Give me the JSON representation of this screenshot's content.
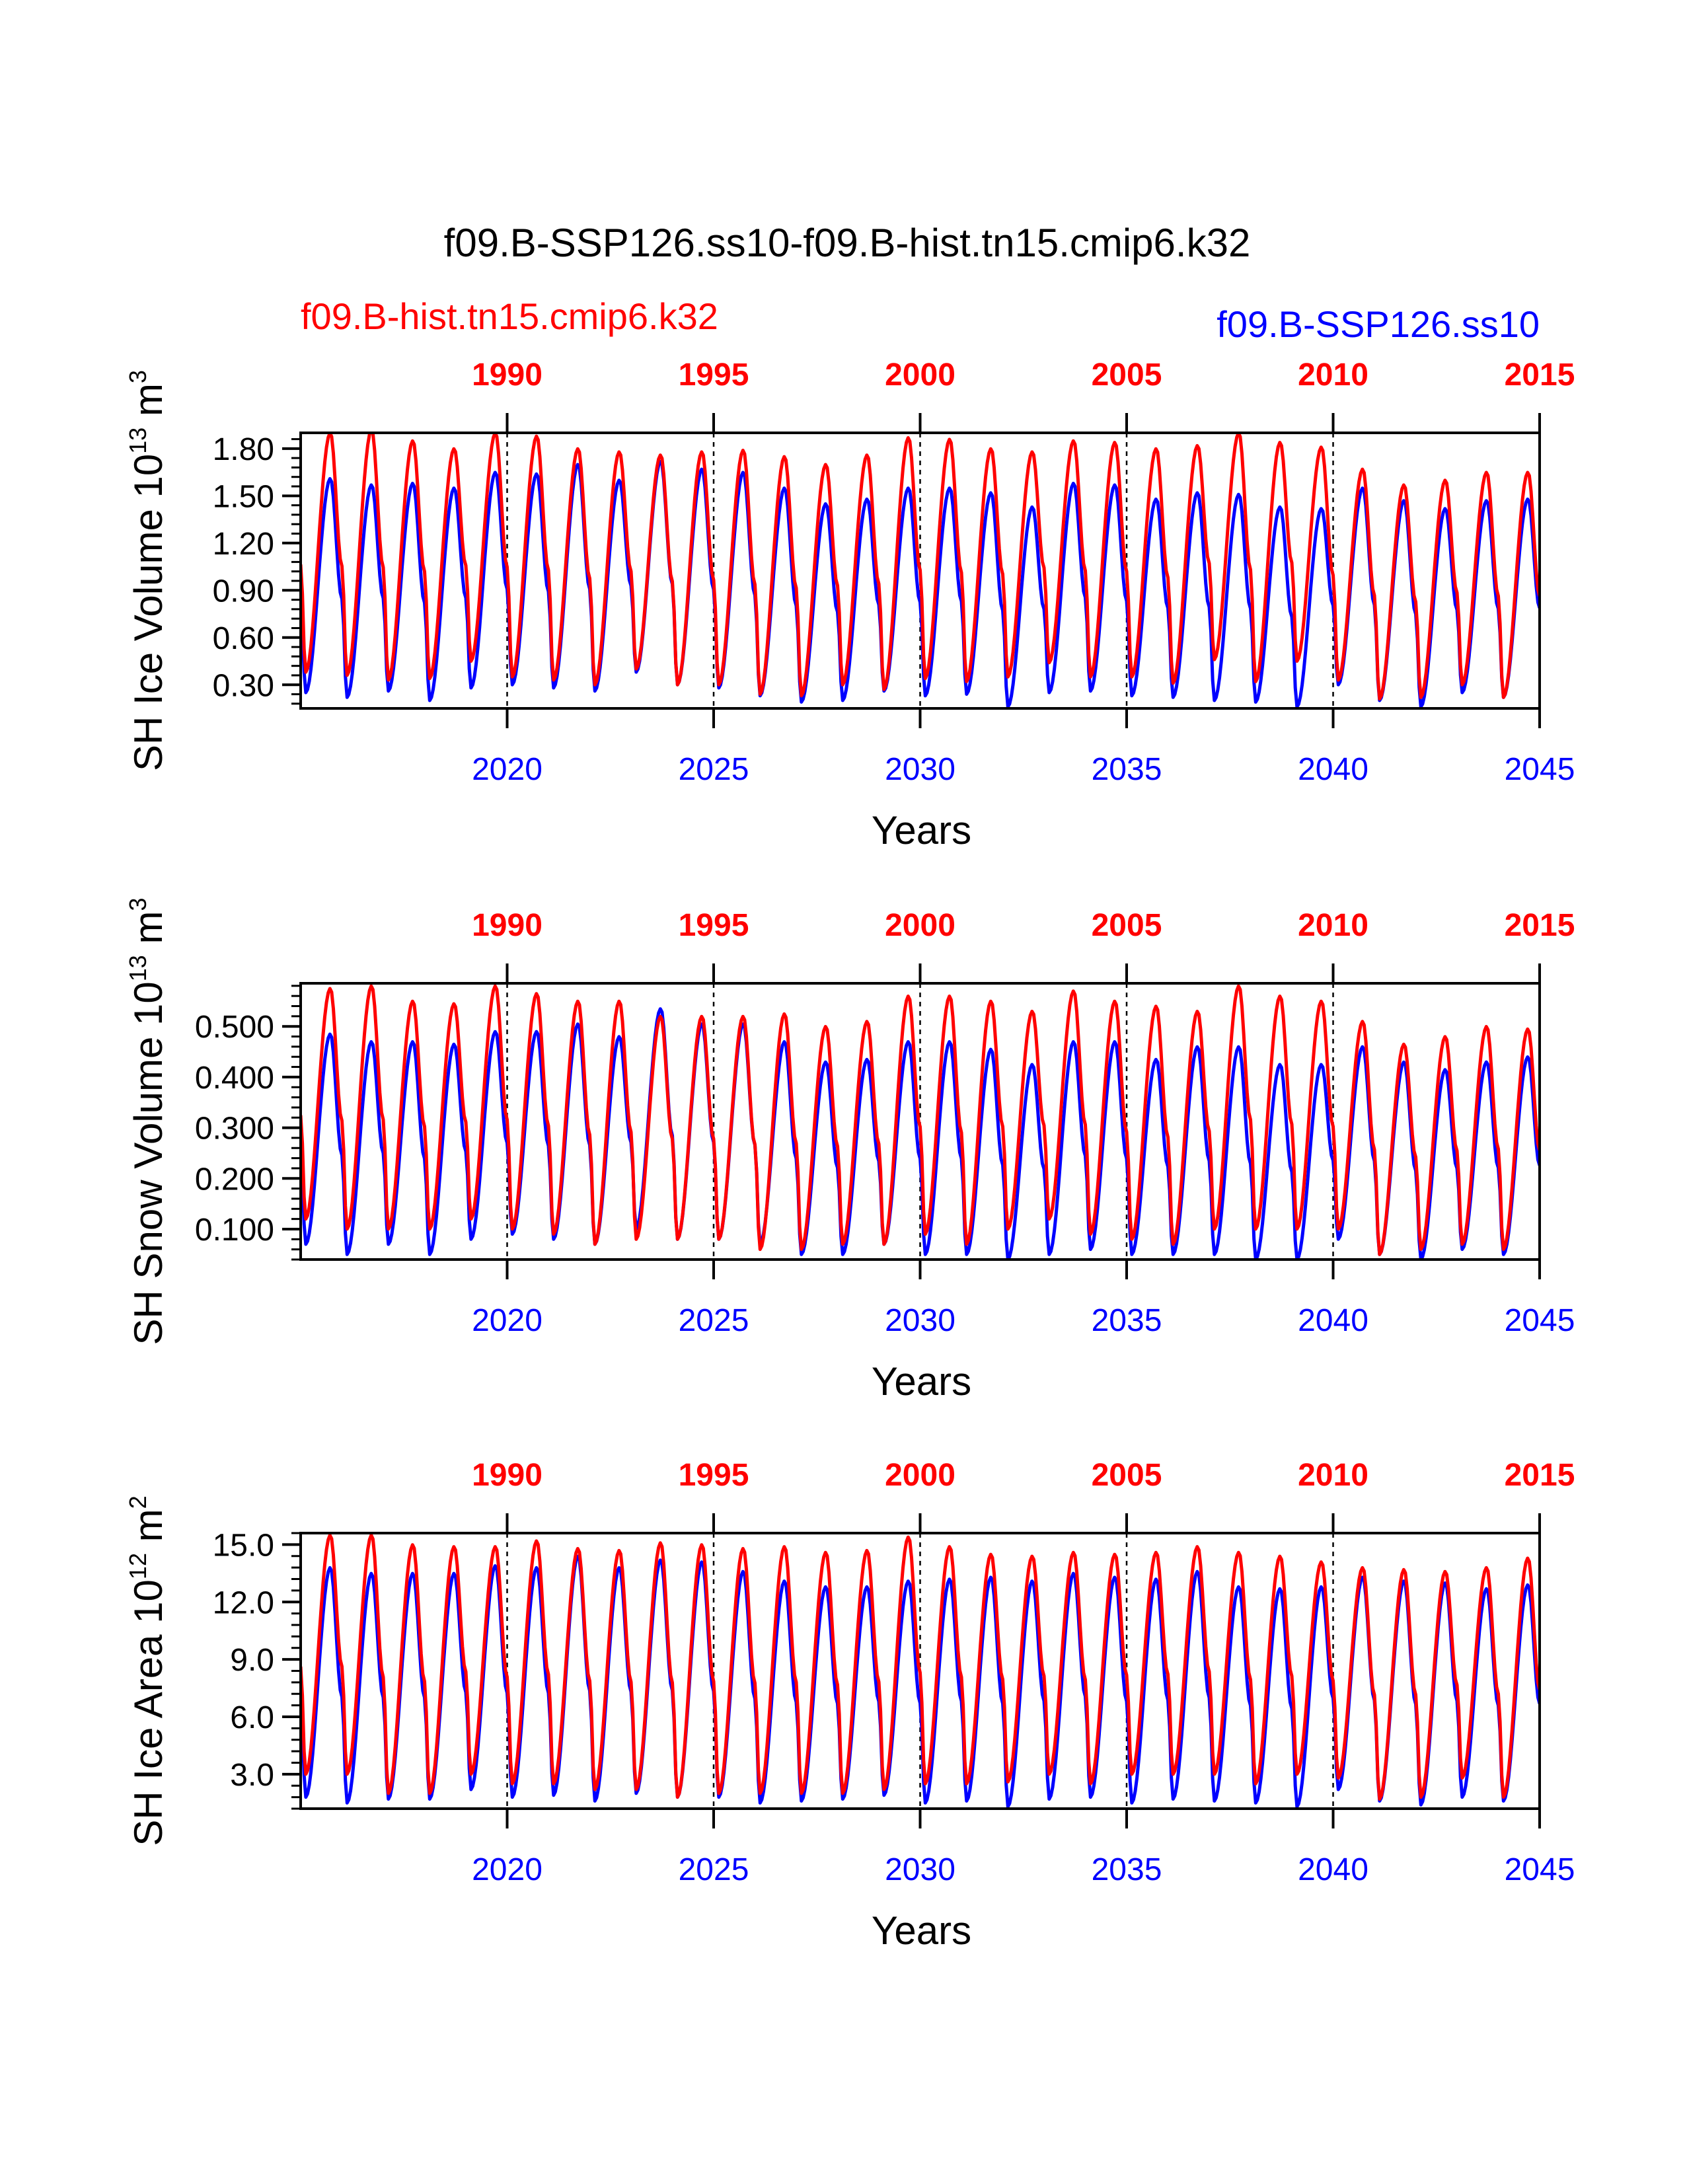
{
  "title": "f09.B-SSP126.ss10-f09.B-hist.tn15.cmip6.k32",
  "legend": {
    "hist": "f09.B-hist.tn15.cmip6.k32",
    "ssp": "f09.B-SSP126.ss10"
  },
  "colors": {
    "hist": "#ff0000",
    "ssp": "#0000ff",
    "axis": "#000000"
  },
  "top_axis_ticks": [
    "1990",
    "1995",
    "2000",
    "2005",
    "2010",
    "2015"
  ],
  "bottom_axis_ticks": [
    "2020",
    "2025",
    "2030",
    "2035",
    "2040",
    "2045"
  ],
  "chart_data": [
    {
      "type": "line",
      "ylabel_main": "SH Ice Volume 10",
      "ylabel_exp": "13",
      "ylabel_unit": " m",
      "ylabel_unit_exp": "3",
      "xlabel": "Years",
      "x_range_bottom": [
        2015,
        2045
      ],
      "x_range_top": [
        1985,
        2015
      ],
      "ylim": [
        0.15,
        1.9
      ],
      "yticks": [
        "0.30",
        "0.60",
        "0.90",
        "1.20",
        "1.50",
        "1.80"
      ],
      "ytick_values": [
        0.3,
        0.6,
        0.9,
        1.2,
        1.5,
        1.8
      ],
      "series": [
        {
          "key": "hist",
          "name": "f09.B-hist.tn15.cmip6.k32",
          "annual_max": [
            1.9,
            1.92,
            1.85,
            1.8,
            1.9,
            1.88,
            1.8,
            1.78,
            1.76,
            1.78,
            1.79,
            1.75,
            1.7,
            1.76,
            1.87,
            1.86,
            1.8,
            1.78,
            1.85,
            1.84,
            1.8,
            1.82,
            1.9,
            1.84,
            1.81,
            1.67,
            1.57,
            1.6,
            1.65,
            1.65
          ],
          "annual_min": [
            0.38,
            0.36,
            0.33,
            0.34,
            0.45,
            0.35,
            0.33,
            0.3,
            0.4,
            0.3,
            0.3,
            0.24,
            0.23,
            0.3,
            0.27,
            0.34,
            0.32,
            0.35,
            0.44,
            0.35,
            0.35,
            0.31,
            0.46,
            0.32,
            0.45,
            0.33,
            0.21,
            0.22,
            0.3,
            0.22
          ]
        },
        {
          "key": "ssp",
          "name": "f09.B-SSP126.ss10",
          "annual_max": [
            1.61,
            1.57,
            1.58,
            1.55,
            1.65,
            1.64,
            1.7,
            1.6,
            1.72,
            1.67,
            1.65,
            1.55,
            1.45,
            1.48,
            1.55,
            1.55,
            1.52,
            1.43,
            1.58,
            1.57,
            1.48,
            1.52,
            1.51,
            1.43,
            1.42,
            1.55,
            1.47,
            1.42,
            1.47,
            1.48
          ],
          "annual_min": [
            0.25,
            0.22,
            0.26,
            0.2,
            0.28,
            0.3,
            0.28,
            0.26,
            0.38,
            0.3,
            0.28,
            0.23,
            0.19,
            0.2,
            0.26,
            0.23,
            0.24,
            0.16,
            0.25,
            0.26,
            0.23,
            0.22,
            0.2,
            0.19,
            0.16,
            0.3,
            0.2,
            0.16,
            0.25,
            0.22
          ]
        }
      ]
    },
    {
      "type": "line",
      "ylabel_main": "SH Snow Volume 10",
      "ylabel_exp": "13",
      "ylabel_unit": " m",
      "ylabel_unit_exp": "3",
      "xlabel": "Years",
      "x_range_bottom": [
        2015,
        2045
      ],
      "x_range_top": [
        1985,
        2015
      ],
      "ylim": [
        0.04,
        0.585
      ],
      "yticks": [
        "0.100",
        "0.200",
        "0.300",
        "0.400",
        "0.500"
      ],
      "ytick_values": [
        0.1,
        0.2,
        0.3,
        0.4,
        0.5
      ],
      "series": [
        {
          "key": "hist",
          "name": "f09.B-hist.tn15.cmip6.k32",
          "annual_max": [
            0.575,
            0.58,
            0.55,
            0.545,
            0.58,
            0.565,
            0.55,
            0.55,
            0.52,
            0.52,
            0.52,
            0.525,
            0.5,
            0.51,
            0.56,
            0.56,
            0.55,
            0.53,
            0.57,
            0.55,
            0.54,
            0.53,
            0.58,
            0.56,
            0.55,
            0.51,
            0.465,
            0.48,
            0.5,
            0.495
          ],
          "annual_min": [
            0.12,
            0.1,
            0.1,
            0.1,
            0.12,
            0.1,
            0.09,
            0.07,
            0.08,
            0.08,
            0.08,
            0.06,
            0.06,
            0.07,
            0.07,
            0.09,
            0.07,
            0.1,
            0.12,
            0.09,
            0.08,
            0.07,
            0.1,
            0.1,
            0.1,
            0.1,
            0.05,
            0.06,
            0.07,
            0.06
          ]
        },
        {
          "key": "ssp",
          "name": "f09.B-SSP126.ss10",
          "annual_max": [
            0.485,
            0.47,
            0.47,
            0.465,
            0.49,
            0.49,
            0.505,
            0.48,
            0.535,
            0.505,
            0.505,
            0.47,
            0.43,
            0.435,
            0.47,
            0.47,
            0.455,
            0.425,
            0.47,
            0.47,
            0.435,
            0.46,
            0.46,
            0.425,
            0.425,
            0.46,
            0.43,
            0.415,
            0.43,
            0.44
          ],
          "annual_min": [
            0.07,
            0.05,
            0.07,
            0.05,
            0.08,
            0.09,
            0.08,
            0.07,
            0.1,
            0.08,
            0.08,
            0.07,
            0.05,
            0.05,
            0.07,
            0.05,
            0.05,
            0.04,
            0.05,
            0.06,
            0.05,
            0.05,
            0.05,
            0.04,
            0.04,
            0.08,
            0.05,
            0.04,
            0.06,
            0.05
          ]
        }
      ]
    },
    {
      "type": "line",
      "ylabel_main": "SH Ice Area 10",
      "ylabel_exp": "12",
      "ylabel_unit": " m",
      "ylabel_unit_exp": "2",
      "xlabel": "Years",
      "x_range_bottom": [
        2015,
        2045
      ],
      "x_range_top": [
        1985,
        2015
      ],
      "ylim": [
        1.2,
        15.6
      ],
      "yticks": [
        "3.0",
        "6.0",
        "9.0",
        "12.0",
        "15.0"
      ],
      "ytick_values": [
        3,
        6,
        9,
        12,
        15
      ],
      "series": [
        {
          "key": "hist",
          "name": "f09.B-hist.tn15.cmip6.k32",
          "annual_max": [
            15.5,
            15.5,
            15.0,
            14.9,
            14.9,
            15.2,
            14.8,
            14.7,
            15.1,
            15.0,
            14.8,
            14.9,
            14.6,
            14.7,
            15.4,
            14.9,
            14.5,
            14.4,
            14.6,
            14.5,
            14.6,
            14.9,
            14.6,
            14.4,
            14.1,
            13.8,
            13.7,
            13.6,
            13.8,
            14.3
          ],
          "annual_min": [
            3.0,
            3.0,
            2.0,
            2.0,
            3.0,
            2.5,
            2.5,
            2.2,
            2.2,
            1.8,
            2.0,
            2.0,
            2.0,
            2.0,
            2.2,
            2.5,
            2.5,
            2.6,
            3.0,
            2.5,
            3.0,
            3.0,
            3.0,
            2.5,
            3.0,
            2.8,
            1.7,
            1.8,
            2.8,
            1.8
          ]
        },
        {
          "key": "ssp",
          "name": "f09.B-SSP126.ss10",
          "annual_max": [
            13.8,
            13.5,
            13.5,
            13.5,
            13.9,
            13.8,
            14.4,
            13.8,
            14.2,
            14.1,
            13.6,
            13.1,
            12.8,
            12.8,
            13.1,
            13.2,
            13.3,
            13.1,
            13.5,
            13.3,
            13.2,
            13.6,
            12.8,
            12.7,
            12.8,
            13.3,
            13.1,
            13.0,
            12.7,
            12.9
          ],
          "annual_min": [
            1.8,
            1.5,
            1.7,
            1.7,
            2.2,
            1.8,
            1.9,
            1.6,
            2.0,
            1.8,
            1.8,
            1.5,
            1.6,
            1.7,
            1.9,
            1.5,
            1.6,
            1.3,
            1.7,
            1.8,
            1.5,
            1.7,
            1.6,
            1.5,
            1.3,
            2.2,
            1.6,
            1.4,
            1.8,
            1.6
          ]
        }
      ]
    }
  ]
}
